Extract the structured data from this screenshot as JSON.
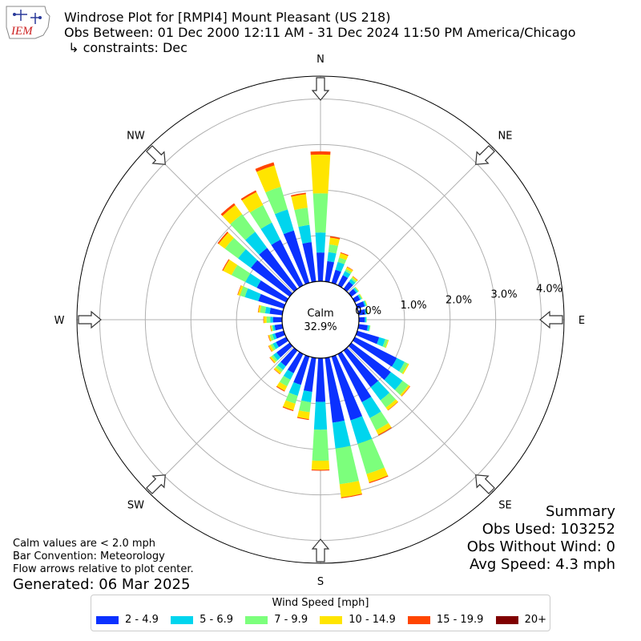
{
  "header": {
    "title_line1": "Windrose Plot for [RMPI4] Mount Pleasant (US 218)",
    "title_line2": "Obs Between: 01 Dec 2000 12:11 AM - 31 Dec 2024 11:50 PM America/Chicago",
    "title_line3": "↳ constraints: Dec",
    "logo_text": "IEM"
  },
  "summary": {
    "heading": "Summary",
    "obs_used": "Obs Used: 103252",
    "obs_without_wind": "Obs Without Wind: 0",
    "avg_speed": "Avg Speed: 4.3 mph"
  },
  "notes": {
    "calm": "Calm values are < 2.0 mph",
    "convention": "Bar Convention: Meteorology",
    "arrows": "Flow arrows relative to plot center.",
    "generated": "Generated: 06 Mar 2025"
  },
  "chart_data": {
    "type": "windrose",
    "calm_label": "Calm",
    "calm_value": "32.9%",
    "radial_ticks": [
      "0.0%",
      "1.0%",
      "2.0%",
      "3.0%",
      "4.0%"
    ],
    "radial_max": 4.5,
    "direction_labels": [
      "N",
      "NE",
      "E",
      "SE",
      "S",
      "SW",
      "W",
      "NW"
    ],
    "legend_title": "Wind Speed [mph]",
    "bins": [
      "2 - 4.9",
      "5 - 6.9",
      "7 - 9.9",
      "10 - 14.9",
      "15 - 19.9",
      "20+"
    ],
    "colors": [
      "#0b31ff",
      "#00d5ee",
      "#7cff7c",
      "#ffe500",
      "#ff4500",
      "#800000"
    ],
    "directions_deg": [
      0,
      10,
      20,
      30,
      40,
      50,
      60,
      70,
      80,
      90,
      100,
      110,
      120,
      130,
      140,
      150,
      160,
      170,
      180,
      190,
      200,
      210,
      220,
      230,
      240,
      250,
      260,
      270,
      280,
      290,
      300,
      310,
      320,
      330,
      340,
      350
    ],
    "cumulative_pct": [
      [
        0.63,
        1.07,
        1.93,
        2.78,
        2.85,
        2.85
      ],
      [
        0.45,
        0.65,
        0.82,
        0.97,
        1.0,
        1.0
      ],
      [
        0.3,
        0.48,
        0.58,
        0.68,
        0.7,
        0.7
      ],
      [
        0.25,
        0.35,
        0.4,
        0.45,
        0.46,
        0.46
      ],
      [
        0.2,
        0.27,
        0.31,
        0.34,
        0.35,
        0.35
      ],
      [
        0.14,
        0.18,
        0.2,
        0.21,
        0.21,
        0.21
      ],
      [
        0.13,
        0.16,
        0.18,
        0.19,
        0.19,
        0.19
      ],
      [
        0.17,
        0.2,
        0.22,
        0.23,
        0.23,
        0.23
      ],
      [
        0.15,
        0.18,
        0.2,
        0.21,
        0.21,
        0.21
      ],
      [
        0.13,
        0.16,
        0.17,
        0.17,
        0.17,
        0.17
      ],
      [
        0.2,
        0.24,
        0.26,
        0.26,
        0.26,
        0.26
      ],
      [
        0.5,
        0.64,
        0.7,
        0.72,
        0.72,
        0.72
      ],
      [
        1.03,
        1.22,
        1.3,
        1.33,
        1.33,
        1.33
      ],
      [
        1.08,
        1.4,
        1.56,
        1.6,
        1.61,
        1.61
      ],
      [
        1.0,
        1.36,
        1.56,
        1.63,
        1.64,
        1.64
      ],
      [
        1.18,
        1.57,
        1.87,
        1.98,
        2.0,
        2.0
      ],
      [
        1.46,
        2.0,
        2.69,
        2.88,
        2.9,
        2.9
      ],
      [
        1.43,
        2.0,
        2.79,
        3.08,
        3.1,
        3.1
      ],
      [
        0.96,
        1.57,
        2.25,
        2.45,
        2.47,
        2.47
      ],
      [
        0.75,
        0.98,
        1.2,
        1.35,
        1.37,
        1.37
      ],
      [
        0.65,
        0.9,
        1.08,
        1.23,
        1.25,
        1.25
      ],
      [
        0.47,
        0.63,
        0.79,
        0.9,
        0.92,
        0.92
      ],
      [
        0.43,
        0.53,
        0.59,
        0.64,
        0.65,
        0.65
      ],
      [
        0.36,
        0.45,
        0.5,
        0.54,
        0.55,
        0.55
      ],
      [
        0.25,
        0.33,
        0.38,
        0.43,
        0.44,
        0.44
      ],
      [
        0.2,
        0.26,
        0.32,
        0.35,
        0.36,
        0.36
      ],
      [
        0.17,
        0.21,
        0.24,
        0.26,
        0.27,
        0.27
      ],
      [
        0.2,
        0.26,
        0.34,
        0.4,
        0.41,
        0.41
      ],
      [
        0.28,
        0.38,
        0.49,
        0.53,
        0.54,
        0.54
      ],
      [
        0.58,
        0.89,
        1.0,
        1.05,
        1.06,
        1.06
      ],
      [
        0.72,
        1.0,
        1.34,
        1.55,
        1.57,
        1.57
      ],
      [
        1.06,
        1.41,
        1.77,
        1.94,
        1.97,
        1.97
      ],
      [
        1.12,
        1.56,
        2.04,
        2.29,
        2.34,
        2.34
      ],
      [
        1.12,
        1.54,
        1.97,
        2.29,
        2.33,
        2.33
      ],
      [
        1.2,
        1.68,
        2.2,
        2.69,
        2.76,
        2.76
      ],
      [
        0.87,
        1.25,
        1.63,
        1.93,
        1.96,
        1.96
      ]
    ]
  }
}
